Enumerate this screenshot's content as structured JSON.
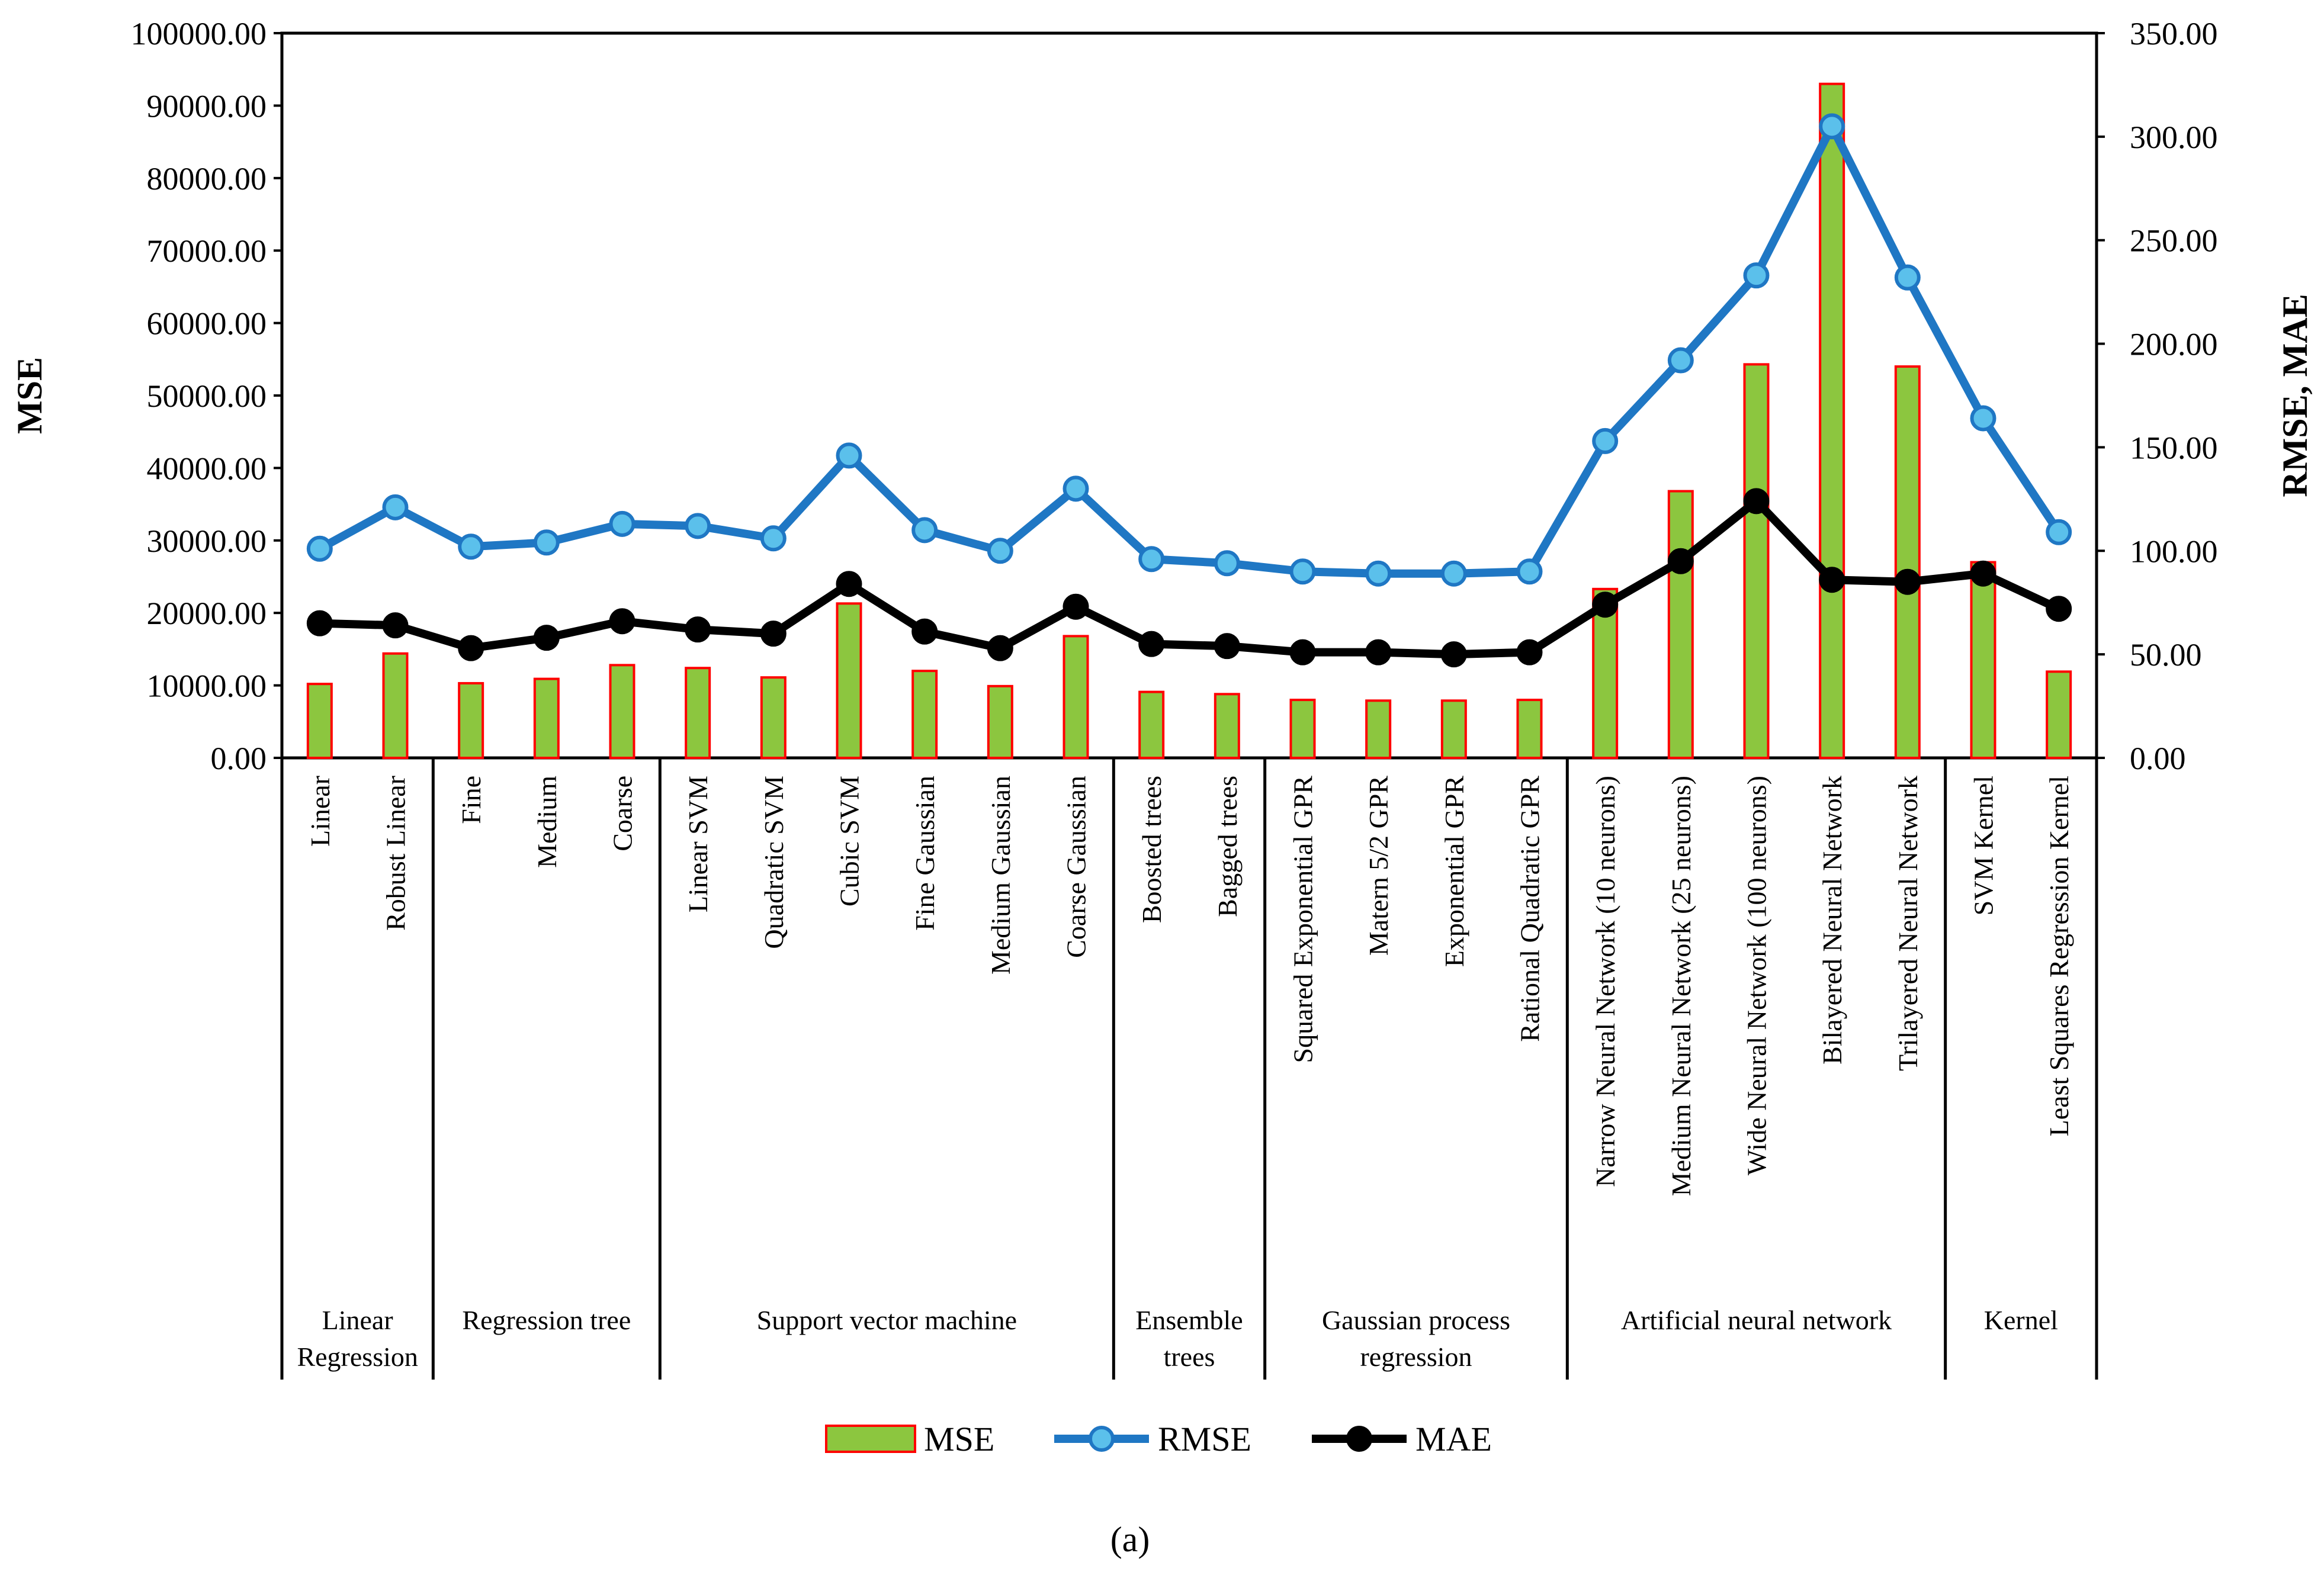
{
  "chart_data": {
    "type": "bar+line",
    "caption": "(a)",
    "categories": [
      "Linear",
      "Robust Linear",
      "Fine",
      "Medium",
      "Coarse",
      "Linear SVM",
      "Quadratic SVM",
      "Cubic SVM",
      "Fine Gaussian",
      "Medium Gaussian",
      "Coarse Gaussian",
      "Boosted trees",
      "Bagged trees",
      "Squared Exponential GPR",
      "Matern 5/2 GPR",
      "Exponential GPR",
      "Rational Quadratic GPR",
      "Narrow Neural Network (10 neurons)",
      "Medium Neural Network (25 neurons)",
      "Wide Neural Network (100 neurons)",
      "Bilayered Neural Network",
      "Trilayered Neural Network",
      "SVM Kernel",
      "Least Squares Regression Kernel"
    ],
    "groups": [
      {
        "label_lines": [
          "Linear",
          "Regression"
        ],
        "start": 0,
        "end": 1
      },
      {
        "label_lines": [
          "Regression tree"
        ],
        "start": 2,
        "end": 4
      },
      {
        "label_lines": [
          "Support vector machine"
        ],
        "start": 5,
        "end": 10
      },
      {
        "label_lines": [
          "Ensemble",
          "trees"
        ],
        "start": 11,
        "end": 12
      },
      {
        "label_lines": [
          "Gaussian process",
          "regression"
        ],
        "start": 13,
        "end": 16
      },
      {
        "label_lines": [
          "Artificial neural network"
        ],
        "start": 17,
        "end": 21
      },
      {
        "label_lines": [
          "Kernel"
        ],
        "start": 22,
        "end": 23
      }
    ],
    "series": [
      {
        "name": "MSE",
        "kind": "bar",
        "axis": "left",
        "fill": "#8cc63f",
        "stroke": "#ff0000",
        "values": [
          10200,
          14400,
          10300,
          10900,
          12800,
          12400,
          11100,
          21300,
          12000,
          9900,
          16800,
          9100,
          8800,
          8000,
          7900,
          7900,
          8000,
          23300,
          36800,
          54300,
          93000,
          54000,
          27000,
          11900
        ]
      },
      {
        "name": "RMSE",
        "kind": "line",
        "axis": "right",
        "color": "#1f77c4",
        "marker_fill": "#5bc0eb",
        "values": [
          101,
          121,
          102,
          104,
          113,
          112,
          106,
          146,
          110,
          100,
          130,
          96,
          94,
          90,
          89,
          89,
          90,
          153,
          192,
          233,
          305,
          232,
          164,
          109
        ]
      },
      {
        "name": "MAE",
        "kind": "line",
        "axis": "right",
        "color": "#000000",
        "marker_fill": "#000000",
        "values": [
          65,
          64,
          53,
          58,
          66,
          62,
          60,
          84,
          61,
          53,
          73,
          55,
          54,
          51,
          51,
          50,
          51,
          74,
          95,
          124,
          86,
          85,
          89,
          72
        ]
      }
    ],
    "y_left": {
      "label": "MSE",
      "ylim": [
        0,
        100000
      ],
      "ticks": [
        "0.00",
        "10000.00",
        "20000.00",
        "30000.00",
        "40000.00",
        "50000.00",
        "60000.00",
        "70000.00",
        "80000.00",
        "90000.00",
        "100000.00"
      ]
    },
    "y_right": {
      "label": "RMSE, MAE",
      "ylim": [
        0,
        350
      ],
      "ticks": [
        "0.00",
        "50.00",
        "100.00",
        "150.00",
        "200.00",
        "250.00",
        "300.00",
        "350.00"
      ]
    },
    "legend": {
      "position": "bottom-center",
      "entries": [
        "MSE",
        "RMSE",
        "MAE"
      ]
    }
  }
}
